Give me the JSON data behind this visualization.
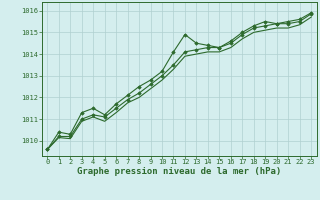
{
  "background_color": "#d4eeee",
  "grid_color": "#b0d0d0",
  "line_color": "#2d6a2d",
  "xlabel": "Graphe pression niveau de la mer (hPa)",
  "x_hours": [
    0,
    1,
    2,
    3,
    4,
    5,
    6,
    7,
    8,
    9,
    10,
    11,
    12,
    13,
    14,
    15,
    16,
    17,
    18,
    19,
    20,
    21,
    22,
    23
  ],
  "series1": [
    1009.6,
    1010.4,
    1010.3,
    1011.3,
    1011.5,
    1011.2,
    1011.7,
    1012.1,
    1012.5,
    1012.8,
    1013.2,
    1014.1,
    1014.9,
    1014.5,
    1014.4,
    1014.3,
    1014.6,
    1015.0,
    1015.3,
    1015.5,
    1015.4,
    1015.5,
    1015.6,
    1015.9
  ],
  "series2": [
    1009.6,
    1010.2,
    1010.2,
    1011.0,
    1011.2,
    1011.1,
    1011.5,
    1011.9,
    1012.2,
    1012.6,
    1013.0,
    1013.5,
    1014.1,
    1014.2,
    1014.3,
    1014.3,
    1014.5,
    1014.9,
    1015.2,
    1015.3,
    1015.4,
    1015.4,
    1015.5,
    1015.85
  ],
  "series3": [
    1009.6,
    1010.15,
    1010.1,
    1010.9,
    1011.1,
    1010.9,
    1011.3,
    1011.75,
    1012.0,
    1012.4,
    1012.8,
    1013.3,
    1013.9,
    1014.0,
    1014.1,
    1014.1,
    1014.3,
    1014.7,
    1015.0,
    1015.1,
    1015.2,
    1015.2,
    1015.35,
    1015.7
  ],
  "ylim": [
    1009.3,
    1016.4
  ],
  "yticks": [
    1010,
    1011,
    1012,
    1013,
    1014,
    1015,
    1016
  ],
  "xticks": [
    0,
    1,
    2,
    3,
    4,
    5,
    6,
    7,
    8,
    9,
    10,
    11,
    12,
    13,
    14,
    15,
    16,
    17,
    18,
    19,
    20,
    21,
    22,
    23
  ],
  "marker": "D",
  "marker_size": 1.8,
  "linewidth": 0.8,
  "xlabel_fontsize": 6.5,
  "tick_fontsize": 5.0
}
